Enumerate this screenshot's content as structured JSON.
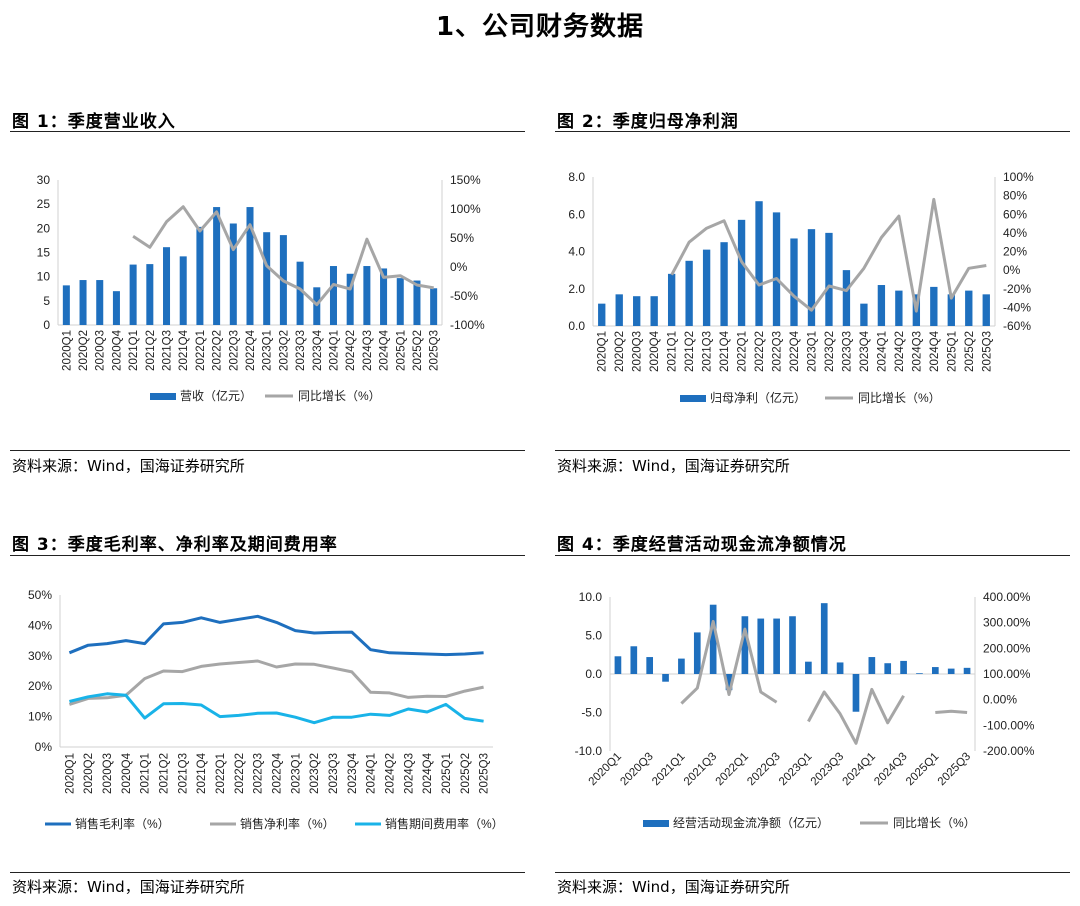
{
  "page_title": "1、公司财务数据",
  "source_note": "资料来源：Wind，国海证券研究所",
  "colors": {
    "blue": "#1e6fbe",
    "gray": "#a6a6a6",
    "cyan": "#19b3e8"
  },
  "chart_data": [
    {
      "id": "fig1",
      "type": "bar+line",
      "title": "图 1：季度营业收入",
      "categories": [
        "2020Q1",
        "2020Q2",
        "2020Q3",
        "2020Q4",
        "2021Q1",
        "2021Q2",
        "2021Q3",
        "2021Q4",
        "2022Q1",
        "2022Q2",
        "2022Q3",
        "2022Q4",
        "2023Q1",
        "2023Q2",
        "2023Q3",
        "2023Q4",
        "2024Q1",
        "2024Q2",
        "2024Q3",
        "2024Q4",
        "2025Q1",
        "2025Q2",
        "2025Q3"
      ],
      "series": [
        {
          "name": "营收（亿元）",
          "kind": "bar",
          "axis": "left",
          "values": [
            8.2,
            9.3,
            9.3,
            7.0,
            12.5,
            12.6,
            16.1,
            14.2,
            20.3,
            24.4,
            21.0,
            24.4,
            19.2,
            18.6,
            13.1,
            7.8,
            12.2,
            10.6,
            12.2,
            11.7,
            9.7,
            9.2,
            7.6
          ]
        },
        {
          "name": "同比增长（%）",
          "kind": "line",
          "axis": "right",
          "values": [
            null,
            null,
            null,
            null,
            53,
            34,
            78,
            104,
            62,
            95,
            30,
            73,
            2,
            -24,
            -38,
            -65,
            -30,
            -38,
            48,
            -18,
            -15,
            -31,
            -36
          ]
        }
      ],
      "y_left": {
        "min": 0,
        "max": 30,
        "ticks": [
          "0",
          "5",
          "10",
          "15",
          "20",
          "25",
          "30"
        ]
      },
      "y_right": {
        "min": -100,
        "max": 150,
        "ticks": [
          "-100%",
          "-50%",
          "0%",
          "50%",
          "100%",
          "150%"
        ]
      }
    },
    {
      "id": "fig2",
      "type": "bar+line",
      "title": "图 2：季度归母净利润",
      "categories": [
        "2020Q1",
        "2020Q2",
        "2020Q3",
        "2020Q4",
        "2021Q1",
        "2021Q2",
        "2021Q3",
        "2021Q4",
        "2022Q1",
        "2022Q2",
        "2022Q3",
        "2022Q4",
        "2023Q1",
        "2023Q2",
        "2023Q3",
        "2023Q4",
        "2024Q1",
        "2024Q2",
        "2024Q3",
        "2024Q4",
        "2025Q1",
        "2025Q2",
        "2025Q3"
      ],
      "series": [
        {
          "name": "归母净利（亿元）",
          "kind": "bar",
          "axis": "left",
          "values": [
            1.2,
            1.7,
            1.6,
            1.6,
            2.8,
            3.5,
            4.1,
            4.5,
            5.7,
            6.7,
            6.1,
            4.7,
            5.2,
            5.0,
            3.0,
            1.2,
            2.2,
            1.9,
            1.7,
            2.1,
            1.7,
            1.9,
            1.7
          ]
        },
        {
          "name": "同比增长（%）",
          "kind": "line",
          "axis": "right",
          "values": [
            null,
            null,
            null,
            null,
            -5,
            30,
            45,
            53,
            9,
            -16,
            -9,
            -28,
            -43,
            -17,
            -22,
            2,
            35,
            58,
            -44,
            76,
            -30,
            2,
            5
          ]
        }
      ],
      "y_left": {
        "min": 0,
        "max": 8,
        "ticks": [
          "0.0",
          "2.0",
          "4.0",
          "6.0",
          "8.0"
        ]
      },
      "y_right": {
        "min": -60,
        "max": 100,
        "ticks": [
          "-60%",
          "-40%",
          "-20%",
          "0%",
          "20%",
          "40%",
          "60%",
          "80%",
          "100%"
        ]
      }
    },
    {
      "id": "fig3",
      "type": "line",
      "title": "图 3：季度毛利率、净利率及期间费用率",
      "categories": [
        "2020Q1",
        "2020Q2",
        "2020Q3",
        "2020Q4",
        "2021Q1",
        "2021Q2",
        "2021Q3",
        "2021Q4",
        "2022Q1",
        "2022Q2",
        "2022Q3",
        "2022Q4",
        "2023Q1",
        "2023Q2",
        "2023Q3",
        "2023Q4",
        "2024Q1",
        "2024Q2",
        "2024Q3",
        "2024Q4",
        "2025Q1",
        "2025Q2",
        "2025Q3"
      ],
      "series": [
        {
          "name": "销售毛利率（%）",
          "color": "blue",
          "values": [
            31,
            33.5,
            34,
            35,
            34,
            40.5,
            41,
            42.5,
            41,
            42,
            43,
            41,
            38.3,
            37.5,
            37.7,
            37.8,
            32,
            31,
            30.8,
            30.6,
            30.4,
            30.6,
            31
          ]
        },
        {
          "name": "销售净利率（%）",
          "color": "gray",
          "values": [
            14,
            16,
            16.2,
            17,
            22.5,
            25,
            24.8,
            26.5,
            27.3,
            27.8,
            28.3,
            26.3,
            27.3,
            27.2,
            26,
            24.7,
            18,
            17.8,
            16.3,
            16.7,
            16.6,
            18.4,
            19.7
          ]
        },
        {
          "name": "销售期间费用率（%）",
          "color": "cyan",
          "values": [
            15,
            16.5,
            17.5,
            17,
            9.5,
            14.2,
            14.3,
            13.8,
            10,
            10.4,
            11.1,
            11.2,
            9.8,
            8,
            9.8,
            9.8,
            10.8,
            10.4,
            12.5,
            11.5,
            14,
            9.4,
            8.5
          ]
        }
      ],
      "y": {
        "min": 0,
        "max": 50,
        "ticks": [
          "0%",
          "10%",
          "20%",
          "30%",
          "40%",
          "50%"
        ]
      }
    },
    {
      "id": "fig4",
      "type": "bar+line",
      "title": "图 4：季度经营活动现金流净额情况",
      "categories": [
        "2020Q1",
        "2020Q2",
        "2020Q3",
        "2020Q4",
        "2021Q1",
        "2021Q2",
        "2021Q3",
        "2021Q4",
        "2022Q1",
        "2022Q2",
        "2022Q3",
        "2022Q4",
        "2023Q1",
        "2023Q2",
        "2023Q3",
        "2023Q4",
        "2024Q1",
        "2024Q2",
        "2024Q3",
        "2024Q4",
        "2025Q1",
        "2025Q2",
        "2025Q3"
      ],
      "x_tick_labels": [
        "2020Q1",
        "2020Q3",
        "2021Q1",
        "2021Q3",
        "2022Q1",
        "2022Q3",
        "2023Q1",
        "2023Q3",
        "2024Q1",
        "2024Q3",
        "2025Q1",
        "2025Q3"
      ],
      "series": [
        {
          "name": "经营活动现金流净额（亿元）",
          "kind": "bar",
          "axis": "left",
          "values": [
            2.3,
            3.6,
            2.2,
            -1.0,
            2.0,
            5.4,
            9.0,
            -2.1,
            7.5,
            7.2,
            7.2,
            7.5,
            1.6,
            9.2,
            1.5,
            -4.9,
            2.2,
            1.4,
            1.7,
            0.1,
            0.9,
            0.7,
            0.8
          ]
        },
        {
          "name": "同比增长（%）",
          "kind": "line",
          "axis": "right",
          "values": [
            null,
            null,
            null,
            null,
            -15,
            45,
            305,
            20,
            275,
            30,
            -10,
            null,
            -85,
            30,
            -55,
            -170,
            40,
            -90,
            15,
            null,
            -50,
            -45,
            -50
          ]
        }
      ],
      "y_left": {
        "min": -10,
        "max": 10,
        "ticks": [
          "-10.0",
          "-5.0",
          "0.0",
          "5.0",
          "10.0"
        ]
      },
      "y_right": {
        "min": -200,
        "max": 400,
        "ticks": [
          "-200.00%",
          "-100.00%",
          "0.00%",
          "100.00%",
          "200.00%",
          "300.00%",
          "400.00%"
        ]
      }
    }
  ]
}
